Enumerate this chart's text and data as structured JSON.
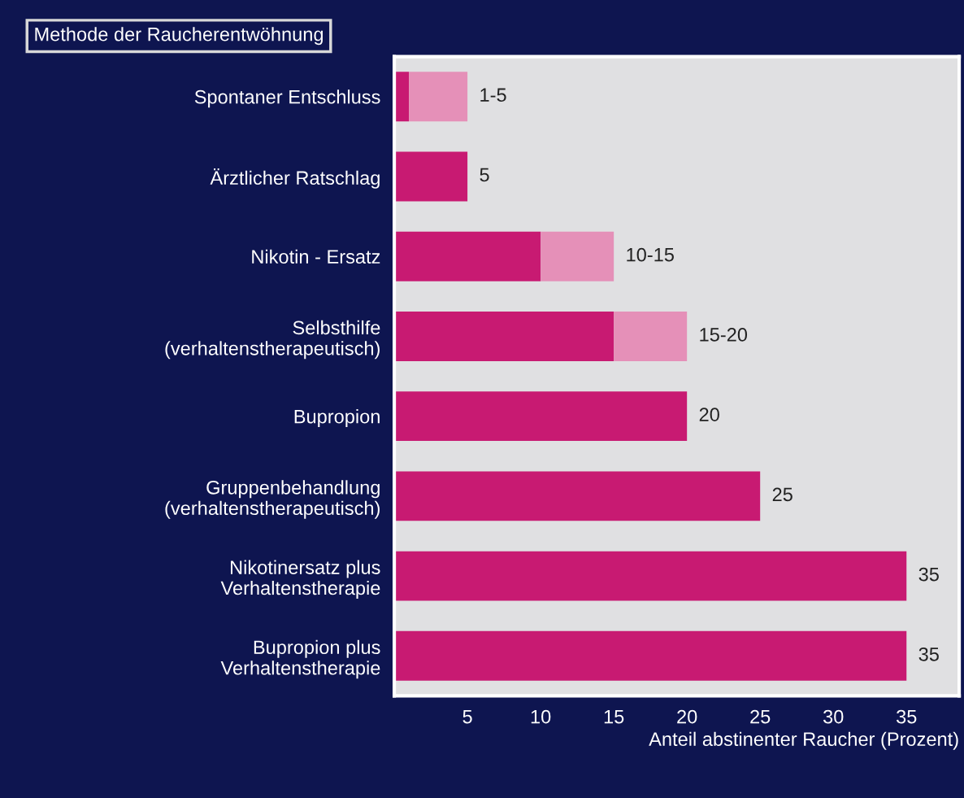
{
  "chart_data": {
    "type": "bar",
    "orientation": "horizontal",
    "stacked": true,
    "title": "Methode der Raucherentwöhnung",
    "xlabel": "Anteil abstinenter Raucher (Prozent)",
    "categories": [
      "Spontaner Entschluss",
      "Ärztlicher Ratschlag",
      "Nikotin - Ersatz",
      "Selbsthilfe\n(verhaltenstherapeutisch)",
      "Bupropion",
      "Gruppenbehandlung\n(verhaltenstherapeutisch)",
      "Nikotinersatz plus\nVerhaltenstherapie",
      "Bupropion plus\nVerhaltenstherapie"
    ],
    "series": [
      {
        "color": "#c81a72",
        "values": [
          1,
          5,
          10,
          15,
          20,
          25,
          35,
          35
        ]
      },
      {
        "color": "#e590b8",
        "values": [
          4,
          null,
          5,
          5,
          null,
          null,
          null,
          null
        ]
      }
    ],
    "value_labels": [
      "1-5",
      "5",
      "10-15",
      "15-20",
      "20",
      "25",
      "35",
      "35"
    ],
    "xlim": [
      0,
      38.6
    ],
    "xticks": [
      5,
      10,
      15,
      20,
      25,
      30,
      35
    ],
    "grid": false,
    "legend": false
  }
}
